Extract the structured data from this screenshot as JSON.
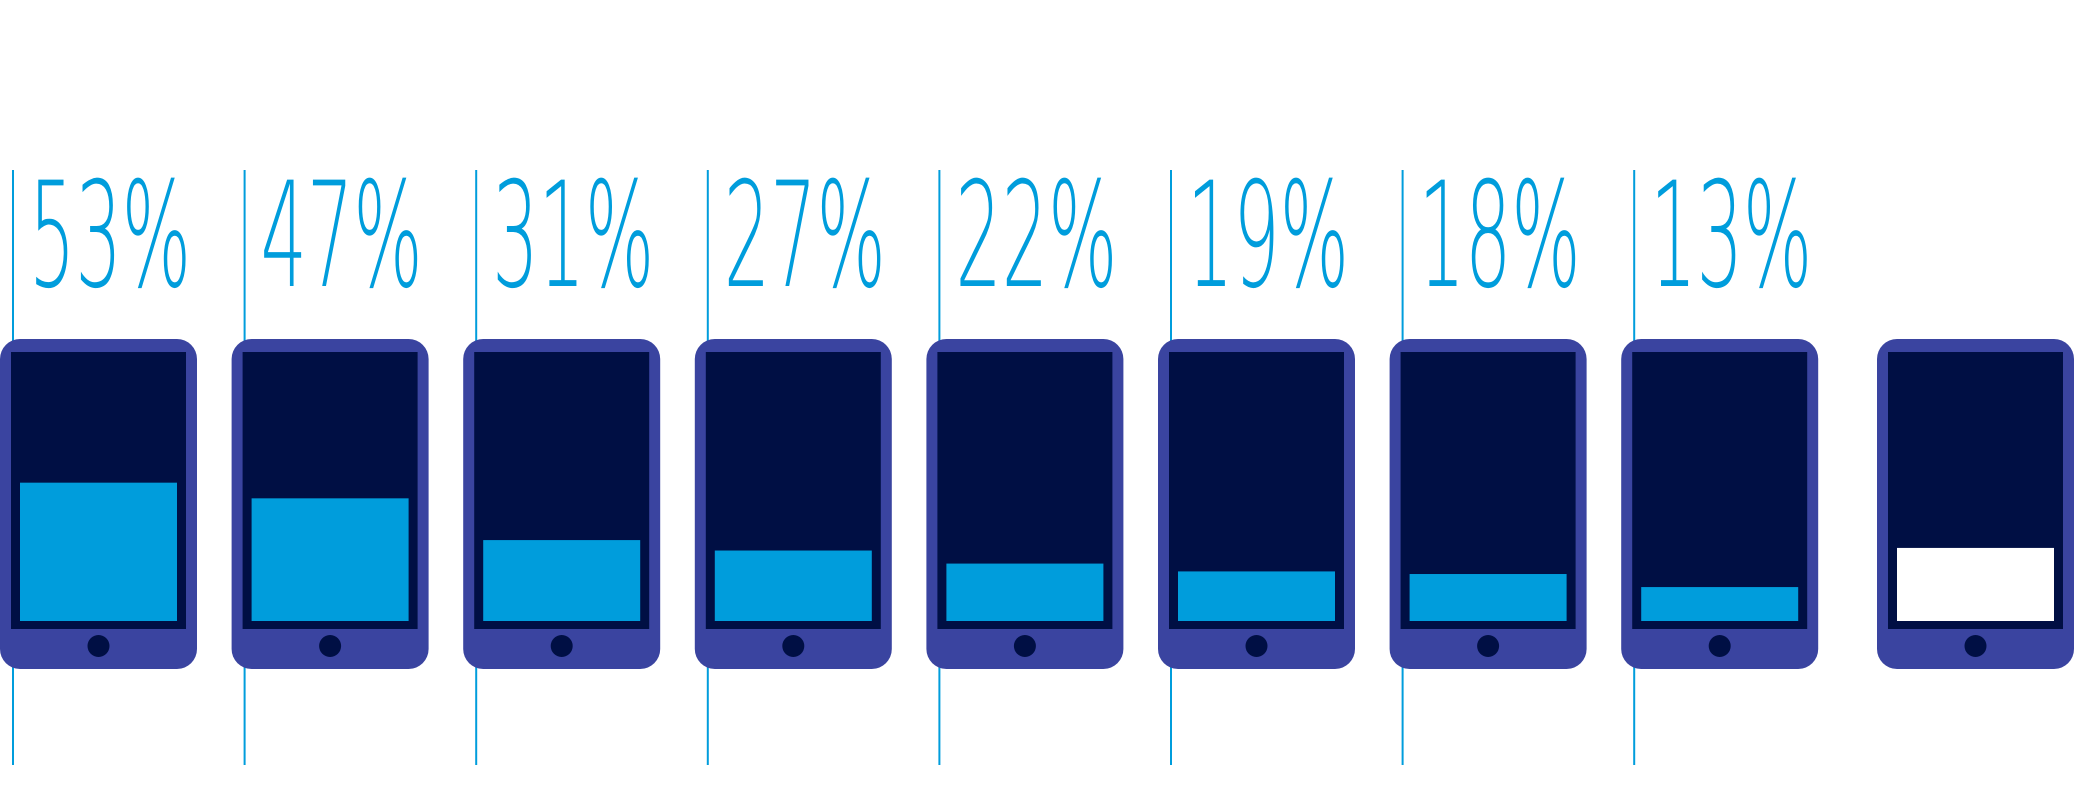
{
  "chart_data": {
    "type": "tablet-bar",
    "values": [
      53,
      47,
      31,
      27,
      22,
      19,
      18,
      13,
      28
    ],
    "value_labels": [
      "53%",
      "47%",
      "31%",
      "27%",
      "22%",
      "19%",
      "18%",
      "13%",
      null
    ],
    "colors": [
      "#009ddc",
      "#009ddc",
      "#009ddc",
      "#009ddc",
      "#009ddc",
      "#009ddc",
      "#009ddc",
      "#009ddc",
      "#ffffff"
    ],
    "ylim": [
      0,
      100
    ]
  }
}
